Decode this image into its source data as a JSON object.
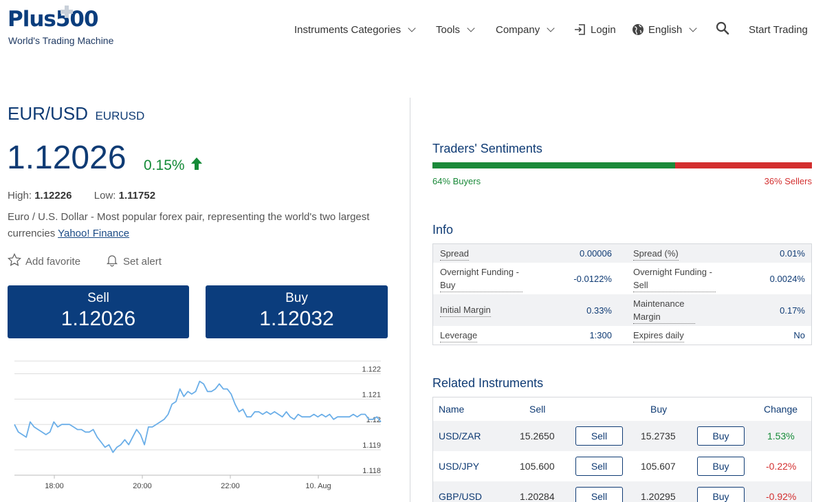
{
  "header": {
    "logo_text": "Plus500",
    "tagline": "World's Trading Machine",
    "nav": [
      {
        "label": "Instruments Categories"
      },
      {
        "label": "Tools"
      },
      {
        "label": "Company"
      },
      {
        "label": "Login"
      },
      {
        "label": "English"
      },
      {
        "label": "Start Trading"
      }
    ]
  },
  "instrument": {
    "name": "EUR/USD",
    "code": "EURUSD",
    "price": "1.12026",
    "change": "0.15%",
    "high_label": "High:",
    "high": "1.12226",
    "low_label": "Low:",
    "low": "1.11752",
    "description": "Euro / U.S. Dollar - Most popular forex pair, representing the world's two largest currencies",
    "source_link": "Yahoo! Finance",
    "add_favorite": "Add favorite",
    "set_alert": "Set alert",
    "sell_label": "Sell",
    "sell_price": "1.12026",
    "buy_label": "Buy",
    "buy_price": "1.12032"
  },
  "chart_data": {
    "type": "line",
    "color": "#6aaee8",
    "y_ticks": [
      "1.122",
      "1.121",
      "1.12",
      "1.119",
      "1.118"
    ],
    "x_ticks": [
      "18:00",
      "20:00",
      "22:00",
      "10. Aug"
    ],
    "ylim": [
      1.118,
      1.1225
    ],
    "y_grid": true,
    "values": [
      1.12,
      1.1197,
      1.1196,
      1.1195,
      1.1201,
      1.1199,
      1.1198,
      1.1197,
      1.1196,
      1.1197,
      1.1201,
      1.1199,
      1.12,
      1.12,
      1.12,
      1.1199,
      1.1198,
      1.1198,
      1.1197,
      1.1197,
      1.1198,
      1.1195,
      1.1193,
      1.1191,
      1.1192,
      1.1189,
      1.1191,
      1.1192,
      1.1194,
      1.1192,
      1.1195,
      1.1198,
      1.1196,
      1.1192,
      1.1199,
      1.1199,
      1.12,
      1.1201,
      1.1202,
      1.1204,
      1.1208,
      1.1209,
      1.1214,
      1.1211,
      1.1213,
      1.1212,
      1.1213,
      1.1217,
      1.1216,
      1.1213,
      1.1213,
      1.1214,
      1.1216,
      1.1214,
      1.1214,
      1.1212,
      1.1208,
      1.1205,
      1.1206,
      1.1203,
      1.1203,
      1.1205,
      1.1205,
      1.1204,
      1.1205,
      1.1204,
      1.1205,
      1.1204,
      1.1203,
      1.1205,
      1.1203,
      1.1202,
      1.1204,
      1.1203,
      1.1203,
      1.1203,
      1.1204,
      1.1203,
      1.1204,
      1.1203,
      1.1204,
      1.1202,
      1.1203,
      1.1203,
      1.1203,
      1.1203,
      1.1204,
      1.1203,
      1.1204,
      1.1204,
      1.1202,
      1.1202,
      1.1203,
      1.1201
    ]
  },
  "sentiment": {
    "title": "Traders' Sentiments",
    "buyers_pct": 64,
    "buyers_label": "64% Buyers",
    "sellers_label": "36% Sellers",
    "buy_color": "#1b8a3a",
    "sell_color": "#d32f2f"
  },
  "info": {
    "title": "Info",
    "rows": [
      [
        {
          "label": "Spread",
          "value": "0.00006"
        },
        {
          "label": "Spread (%)",
          "value": "0.01%"
        }
      ],
      [
        {
          "label": "Overnight Funding - Buy",
          "value": "-0.0122%"
        },
        {
          "label": "Overnight Funding - Sell",
          "value": "0.0024%"
        }
      ],
      [
        {
          "label": "Initial Margin",
          "value": "0.33%"
        },
        {
          "label": "Maintenance Margin",
          "value": "0.17%"
        }
      ],
      [
        {
          "label": "Leverage",
          "value": "1:300"
        },
        {
          "label": "Expires daily",
          "value": "No"
        }
      ]
    ]
  },
  "related": {
    "title": "Related Instruments",
    "headers": {
      "name": "Name",
      "sell": "Sell",
      "buy": "Buy",
      "change": "Change"
    },
    "sell_btn": "Sell",
    "buy_btn": "Buy",
    "rows": [
      {
        "name": "USD/ZAR",
        "sell": "15.2650",
        "buy": "15.2735",
        "change": "1.53%",
        "positive": true
      },
      {
        "name": "USD/JPY",
        "sell": "105.600",
        "buy": "105.607",
        "change": "-0.22%",
        "positive": false
      },
      {
        "name": "GBP/USD",
        "sell": "1.20284",
        "buy": "1.20295",
        "change": "-0.92%",
        "positive": false
      }
    ],
    "positive_color": "#138a36",
    "negative_color": "#d32f2f"
  }
}
